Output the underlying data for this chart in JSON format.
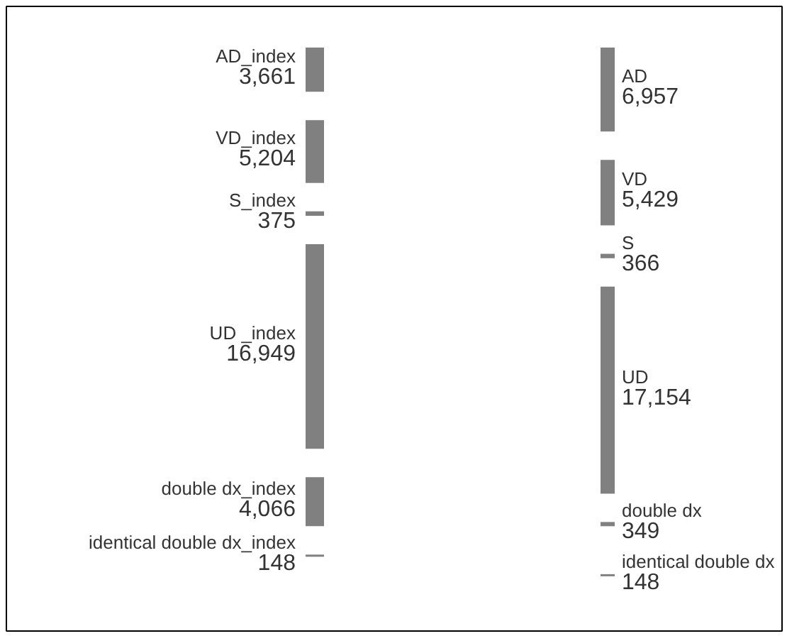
{
  "chart_data": {
    "type": "other",
    "categories": [
      "AD_index",
      "VD_index",
      "S_index",
      "UD _index",
      "double dx_index",
      "identical double dx_index",
      "AD",
      "VD",
      "S",
      "UD",
      "double dx",
      "identical double dx"
    ],
    "values": [
      3661,
      5204,
      375,
      16949,
      4066,
      148,
      6957,
      5429,
      366,
      17154,
      349,
      148
    ],
    "color": "#808080",
    "value_labels": [
      "3,661",
      "5,204",
      "375",
      "16,949",
      "4,066",
      "148",
      "6,957",
      "5,429",
      "366",
      "17,154",
      "349",
      "148"
    ]
  }
}
